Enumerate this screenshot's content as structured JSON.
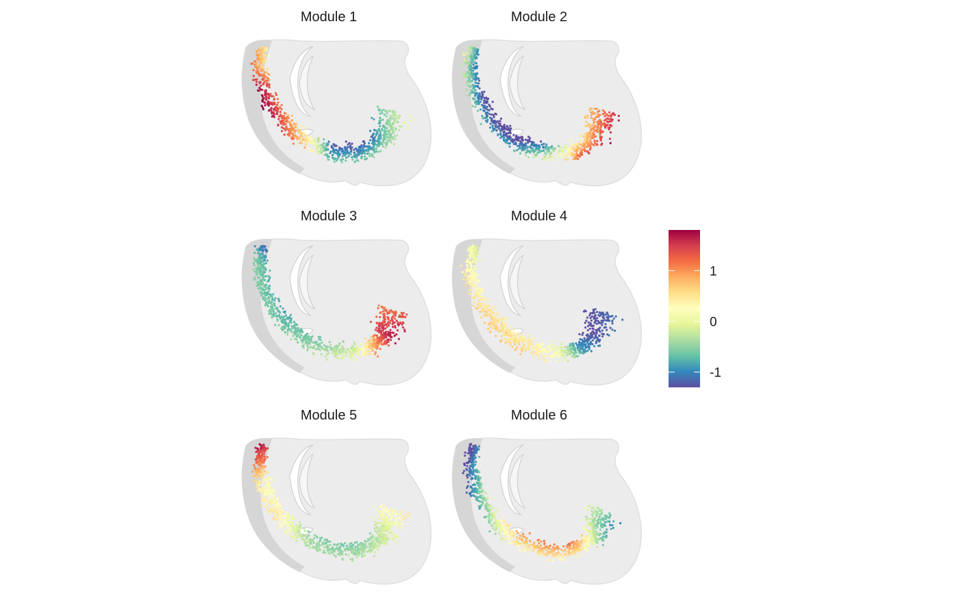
{
  "chart_data": {
    "type": "scatter",
    "panels": [
      {
        "title": "Module 1",
        "band_profile": [
          [
            0.0,
            0.6
          ],
          [
            0.1,
            0.8
          ],
          [
            0.2,
            1.6
          ],
          [
            0.3,
            1.4
          ],
          [
            0.45,
            0.6
          ],
          [
            0.55,
            -1.0
          ],
          [
            0.7,
            -0.9
          ],
          [
            0.85,
            -0.6
          ],
          [
            1.0,
            -0.3
          ]
        ],
        "cross_gradient": 0.25
      },
      {
        "title": "Module 2",
        "band_profile": [
          [
            0.0,
            -0.6
          ],
          [
            0.15,
            -0.7
          ],
          [
            0.3,
            -1.2
          ],
          [
            0.45,
            -1.3
          ],
          [
            0.6,
            -0.3
          ],
          [
            0.7,
            0.8
          ],
          [
            0.85,
            1.1
          ],
          [
            1.0,
            1.2
          ]
        ],
        "cross_gradient": 0.35
      },
      {
        "title": "Module 3",
        "band_profile": [
          [
            0.0,
            -1.1
          ],
          [
            0.1,
            -0.6
          ],
          [
            0.3,
            -0.7
          ],
          [
            0.5,
            -0.5
          ],
          [
            0.65,
            -0.1
          ],
          [
            0.75,
            0.9
          ],
          [
            0.85,
            1.6
          ],
          [
            1.0,
            1.2
          ]
        ],
        "cross_gradient": 0.1
      },
      {
        "title": "Module 4",
        "band_profile": [
          [
            0.0,
            0.0
          ],
          [
            0.15,
            0.3
          ],
          [
            0.3,
            0.6
          ],
          [
            0.5,
            0.5
          ],
          [
            0.62,
            0.1
          ],
          [
            0.72,
            -0.9
          ],
          [
            0.85,
            -1.3
          ],
          [
            1.0,
            -1.2
          ]
        ],
        "cross_gradient": 0.1
      },
      {
        "title": "Module 5",
        "band_profile": [
          [
            0.0,
            1.6
          ],
          [
            0.08,
            1.2
          ],
          [
            0.18,
            0.3
          ],
          [
            0.3,
            0.4
          ],
          [
            0.45,
            -0.4
          ],
          [
            0.6,
            -0.5
          ],
          [
            0.75,
            -0.3
          ],
          [
            0.88,
            -0.1
          ],
          [
            1.0,
            0.4
          ]
        ],
        "cross_gradient": 0.1
      },
      {
        "title": "Module 6",
        "band_profile": [
          [
            0.0,
            -1.3
          ],
          [
            0.15,
            -1.0
          ],
          [
            0.3,
            -0.4
          ],
          [
            0.45,
            0.6
          ],
          [
            0.6,
            0.8
          ],
          [
            0.72,
            0.7
          ],
          [
            0.82,
            -0.2
          ],
          [
            0.92,
            -0.6
          ],
          [
            1.0,
            -0.4
          ]
        ],
        "cross_gradient": -0.3
      }
    ],
    "colorbar": {
      "range": [
        -1.3,
        1.8
      ],
      "ticks": [
        1,
        0,
        -1
      ],
      "tick_labels": [
        "1",
        "0",
        "-1"
      ],
      "colormap": [
        "#5e4fa2",
        "#3288bd",
        "#66c2a5",
        "#abdda4",
        "#e6f598",
        "#ffffbf",
        "#fee08b",
        "#fdae61",
        "#f46d43",
        "#d53e4f",
        "#9e0142"
      ]
    },
    "background_color": "#d6d6d6"
  }
}
